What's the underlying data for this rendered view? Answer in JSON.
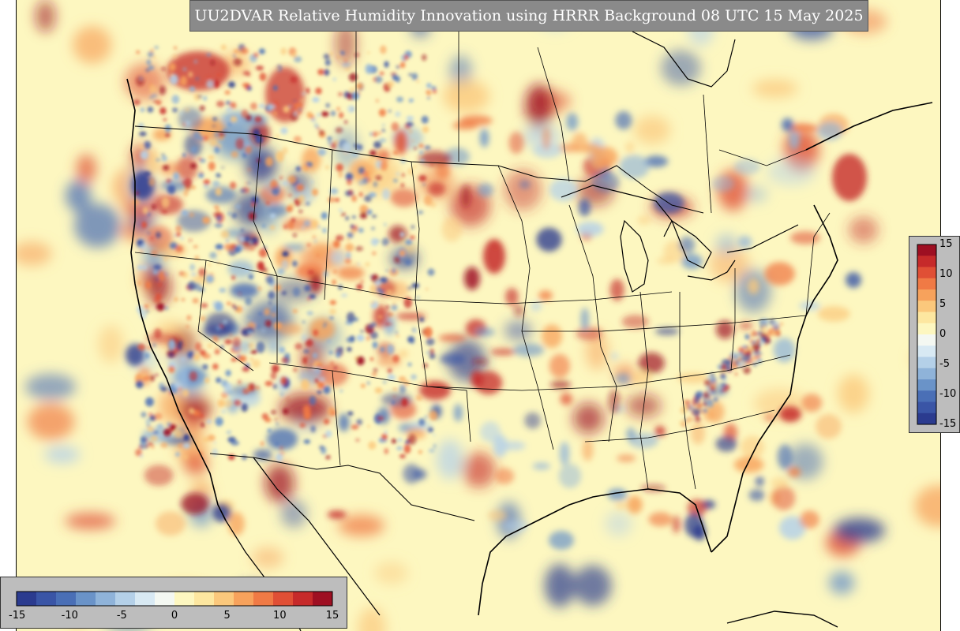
{
  "title": "UU2DVAR Relative Humidity Innovation using HRRR Background 08 UTC 15 May 2025",
  "colorbar": {
    "min": -15,
    "max": 15,
    "levels": 24,
    "horizontal_ticks": [
      "-15",
      "-10",
      "-5",
      "0",
      "5",
      "10",
      "15"
    ],
    "vertical_ticks": [
      "15",
      "10",
      "5",
      "0",
      "-5",
      "-10",
      "-15"
    ],
    "palette": [
      "#2b3b8f",
      "#3a55a6",
      "#4a6fb6",
      "#6a93c8",
      "#8fb3d9",
      "#b4d0e8",
      "#d8e9f3",
      "#f4f8f2",
      "#fdf7c0",
      "#fde7a0",
      "#fbc87c",
      "#f7a25c",
      "#f07a45",
      "#e04f35",
      "#c62a2a",
      "#9e0f22"
    ]
  }
}
